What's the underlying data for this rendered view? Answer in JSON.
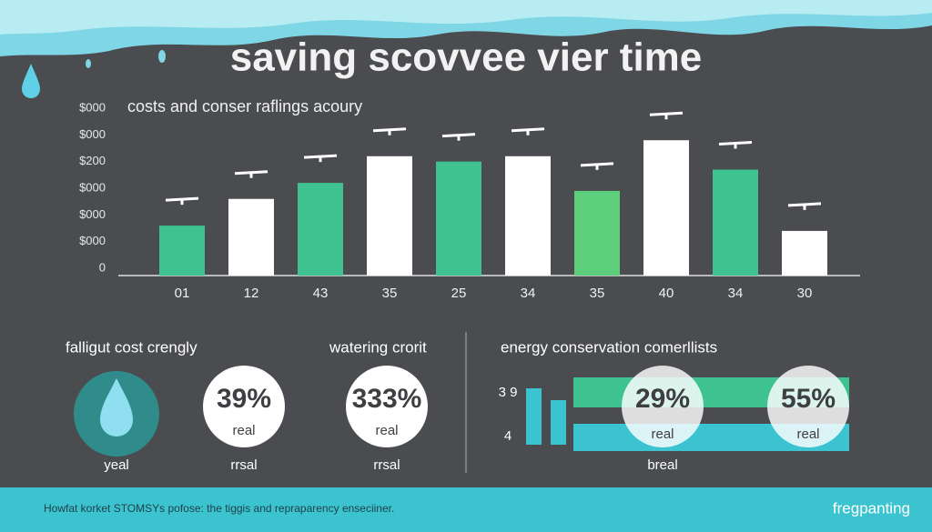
{
  "chart_data": {
    "type": "bar",
    "title": "saving scovvee vier time",
    "subtitle": "costs and conser raflings acoury",
    "categories": [
      "01",
      "12",
      "43",
      "35",
      "25",
      "34",
      "35",
      "40",
      "34",
      "30"
    ],
    "values": [
      1.6,
      2.6,
      3.2,
      4.2,
      4.0,
      4.2,
      2.9,
      4.8,
      3.7,
      1.4
    ],
    "colors": [
      "#3ec28f",
      "#ffffff",
      "#3ec28f",
      "#ffffff",
      "#3ec28f",
      "#ffffff",
      "#5dcf7c",
      "#ffffff",
      "#3ec28f",
      "#ffffff"
    ],
    "ylim": [
      0,
      6
    ],
    "yticks": [
      {
        "value": 0,
        "label": "0"
      },
      {
        "value": 1,
        "label": "$000"
      },
      {
        "value": 2,
        "label": "$000"
      },
      {
        "value": 3,
        "label": "$000"
      },
      {
        "value": 4,
        "label": "$200"
      },
      {
        "value": 5,
        "label": "$000"
      },
      {
        "value": 6,
        "label": "$000"
      }
    ],
    "grid": false
  },
  "panels": {
    "left": {
      "title": "falligut cost crengly",
      "percent": "39%",
      "inner": "real",
      "icon_label": "yeal",
      "caption": "rrsal"
    },
    "middle": {
      "title": "watering crorit",
      "percent": "333%",
      "inner": "real",
      "caption": "rrsal"
    },
    "right": {
      "title": "energy conservation comerllists",
      "label_top": "3 9",
      "label_bottom": "4",
      "percent_a": "29%",
      "inner_a": "real",
      "percent_b": "55%",
      "inner_b": "real",
      "caption": "breal"
    }
  },
  "footer": {
    "text": "Howfat korket STOMSYs pofose: the tiggis and repraparency enseciiner.",
    "brand": "fregpanting"
  }
}
